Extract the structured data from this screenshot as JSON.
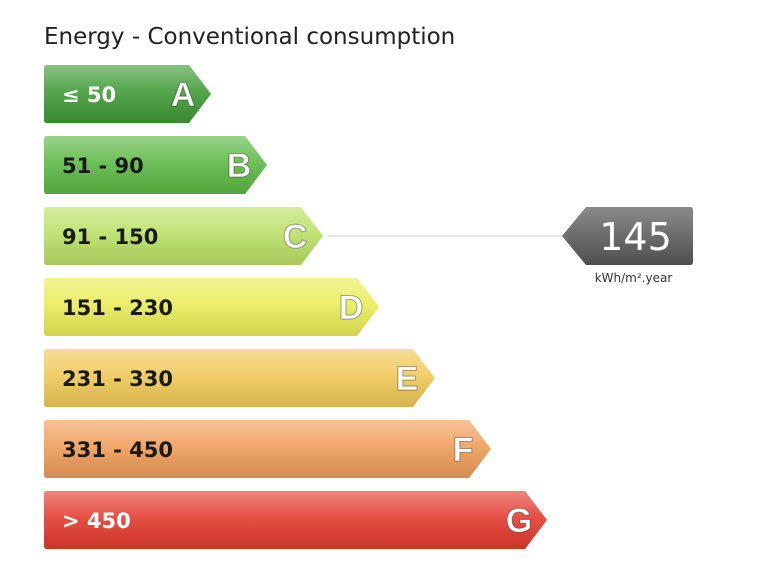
{
  "title": "Energy - Conventional consumption",
  "chart_data": {
    "type": "bar",
    "title": "Energy - Conventional consumption",
    "classes": [
      {
        "letter": "A",
        "range": "≤ 50",
        "color": "#3f9a35",
        "text_color": "#ffffff"
      },
      {
        "letter": "B",
        "range": "51 - 90",
        "color": "#5bb842",
        "text_color": "#1a1a1a"
      },
      {
        "letter": "C",
        "range": "91 - 150",
        "color": "#b9e064",
        "text_color": "#1a1a1a"
      },
      {
        "letter": "D",
        "range": "151 - 230",
        "color": "#e9ec55",
        "text_color": "#1a1a1a"
      },
      {
        "letter": "E",
        "range": "231 - 330",
        "color": "#f0c855",
        "text_color": "#1a1a1a"
      },
      {
        "letter": "F",
        "range": "331 - 450",
        "color": "#ee9c57",
        "text_color": "#1a1a1a"
      },
      {
        "letter": "G",
        "range": "> 450",
        "color": "#e33a2e",
        "text_color": "#ffffff"
      }
    ],
    "current": {
      "value": "145",
      "unit": "kWh/m².year",
      "class": "C",
      "marker_color": "#6e6e6e"
    }
  }
}
